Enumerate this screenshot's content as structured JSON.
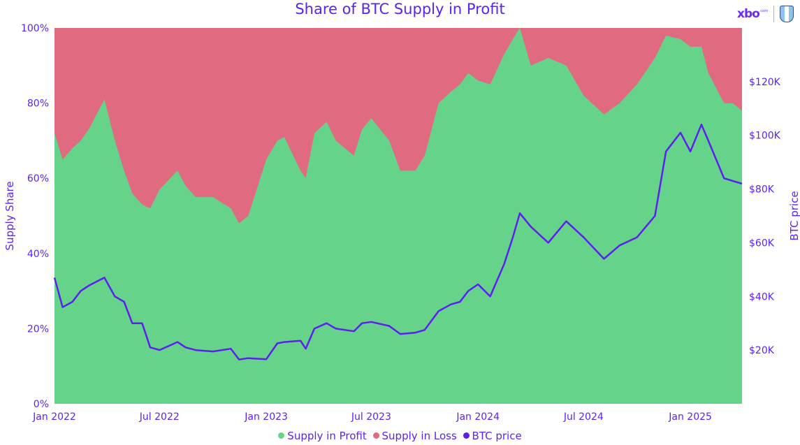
{
  "chart_data": {
    "type": "area",
    "title": "Share of BTC Supply in Profit",
    "ylabel": "Supply Share",
    "y2label": "BTC price",
    "ylim": [
      0,
      100
    ],
    "y2lim": [
      0,
      140000
    ],
    "yticks": [
      "0%",
      "20%",
      "40%",
      "60%",
      "80%",
      "100%"
    ],
    "y2ticks": [
      "$20K",
      "$40K",
      "$60K",
      "$80K",
      "$100K",
      "$120K"
    ],
    "y2tick_values": [
      20000,
      40000,
      60000,
      80000,
      100000,
      120000
    ],
    "ytick_values": [
      0,
      20,
      40,
      60,
      80,
      100
    ],
    "xticks": [
      "Jan 2022",
      "Jul 2022",
      "Jan 2023",
      "Jul 2023",
      "Jan 2024",
      "Jul 2024",
      "Jan 2025"
    ],
    "xtick_dates": [
      "2022-01-01",
      "2022-07-01",
      "2023-01-01",
      "2023-07-01",
      "2024-01-01",
      "2024-07-01",
      "2025-01-01"
    ],
    "xlim": [
      "2022-01-01",
      "2025-03-31"
    ],
    "grid": false,
    "legend_placement": "bottom",
    "colors": {
      "profit": "#66d38a",
      "loss": "#e06b80",
      "price": "#5b1ff0",
      "text": "#5b22f5"
    },
    "x": [
      "2022-01-01",
      "2022-01-15",
      "2022-02-01",
      "2022-02-15",
      "2022-03-01",
      "2022-03-28",
      "2022-04-15",
      "2022-05-01",
      "2022-05-15",
      "2022-06-01",
      "2022-06-15",
      "2022-07-01",
      "2022-08-01",
      "2022-08-15",
      "2022-09-01",
      "2022-10-01",
      "2022-11-01",
      "2022-11-15",
      "2022-12-01",
      "2023-01-01",
      "2023-01-20",
      "2023-02-01",
      "2023-03-01",
      "2023-03-10",
      "2023-03-25",
      "2023-04-15",
      "2023-05-01",
      "2023-06-01",
      "2023-06-15",
      "2023-07-01",
      "2023-08-01",
      "2023-08-20",
      "2023-09-15",
      "2023-10-01",
      "2023-10-25",
      "2023-11-15",
      "2023-12-01",
      "2023-12-15",
      "2024-01-01",
      "2024-01-22",
      "2024-02-15",
      "2024-03-01",
      "2024-03-13",
      "2024-04-01",
      "2024-05-01",
      "2024-06-01",
      "2024-07-01",
      "2024-08-05",
      "2024-09-01",
      "2024-10-01",
      "2024-11-01",
      "2024-11-20",
      "2024-12-15",
      "2025-01-01",
      "2025-01-20",
      "2025-02-01",
      "2025-02-28",
      "2025-03-15",
      "2025-03-31"
    ],
    "series": [
      {
        "name": "Supply in Profit",
        "values": [
          72,
          65,
          68,
          70,
          73,
          81,
          70,
          62,
          56,
          53,
          52,
          57,
          62,
          58,
          55,
          55,
          52,
          48,
          50,
          65,
          70,
          71,
          62,
          60,
          72,
          75,
          70,
          66,
          73,
          76,
          70,
          62,
          62,
          66,
          80,
          83,
          85,
          88,
          86,
          85,
          93,
          97,
          100,
          90,
          92,
          90,
          82,
          77,
          80,
          85,
          92,
          98,
          97,
          95,
          95,
          88,
          80,
          80,
          78
        ]
      },
      {
        "name": "Supply in Loss",
        "values": [
          28,
          35,
          32,
          30,
          27,
          19,
          30,
          38,
          44,
          47,
          48,
          43,
          38,
          42,
          45,
          45,
          48,
          52,
          50,
          35,
          30,
          29,
          38,
          40,
          28,
          25,
          30,
          34,
          27,
          24,
          30,
          38,
          38,
          34,
          20,
          17,
          15,
          12,
          14,
          15,
          7,
          3,
          0,
          10,
          8,
          10,
          18,
          23,
          20,
          15,
          8,
          2,
          3,
          5,
          5,
          12,
          20,
          20,
          22
        ]
      },
      {
        "name": "BTC price",
        "values": [
          47000,
          36000,
          38000,
          42000,
          44000,
          47000,
          40000,
          38000,
          30000,
          30000,
          21000,
          20000,
          23000,
          21000,
          20000,
          19500,
          20500,
          16500,
          17000,
          16600,
          22500,
          23000,
          23500,
          20500,
          28000,
          30000,
          28000,
          27000,
          30000,
          30500,
          29000,
          26000,
          26500,
          27500,
          34500,
          37000,
          38000,
          42000,
          44500,
          40000,
          52000,
          62000,
          71000,
          66000,
          60000,
          68000,
          62000,
          54000,
          59000,
          62000,
          70000,
          94000,
          101000,
          94000,
          104000,
          98000,
          84000,
          83000,
          82000
        ]
      }
    ]
  }
}
